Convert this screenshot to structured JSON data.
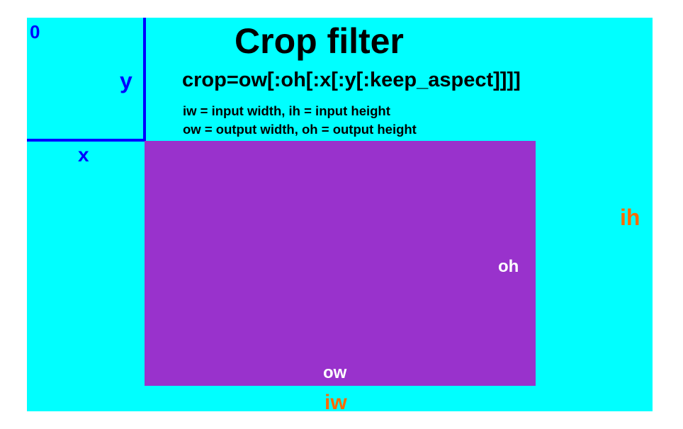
{
  "title": "Crop filter",
  "syntax": "crop=ow[:oh[:x[:y[:keep_aspect]]]]",
  "legend": [
    "iw = input width, ih = input height",
    "ow = output width, oh = output height"
  ],
  "labels": {
    "origin": "0",
    "x": "x",
    "y": "y",
    "oh": "oh",
    "ow": "ow",
    "ih": "ih",
    "iw": "iw"
  },
  "colors": {
    "input_frame": "#00ffff",
    "output_frame": "#9932cc",
    "offset_lines": "#0000ff",
    "input_dims": "#ff6a00",
    "output_dims": "#ffffff",
    "text": "#000000"
  }
}
